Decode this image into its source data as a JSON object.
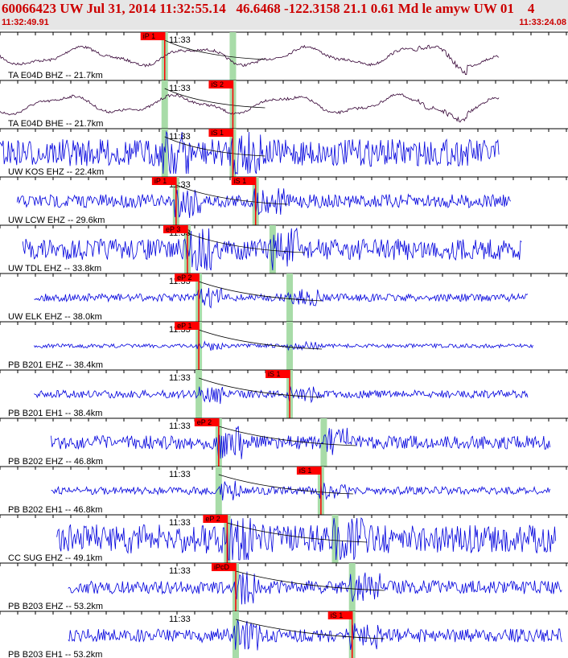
{
  "header": {
    "title": "60066423 UW Jul 31, 2014 11:32:55.14   46.6468 -122.3158 21.1 0.61 Md le amyw UW 01    4",
    "time_start": "11:32:49.91",
    "time_end": "11:33:24.08"
  },
  "minute_label": "11:33",
  "colors": {
    "trace_blue": "#0000dd",
    "trace_dark": "#330033",
    "pick_red": "#ff0000",
    "window_green": "#a8dca8",
    "travel_curve": "#000000",
    "header_bg": "#e6e6e6"
  },
  "traces": [
    {
      "label": "TA E04D BHZ -- 21.7km",
      "color": "dark",
      "start": 0.0,
      "end": 0.88,
      "p_pick": "iP 1",
      "p_time": 0.29,
      "s_pick": "",
      "s_time": 0.41,
      "amp": 0.45,
      "style": "smooth"
    },
    {
      "label": "TA E04D BHE -- 21.7km",
      "color": "dark",
      "start": 0.0,
      "end": 0.88,
      "p_pick": "",
      "p_time": 0.29,
      "s_pick": "iS 2",
      "s_time": 0.41,
      "amp": 0.45,
      "style": "smooth"
    },
    {
      "label": "UW KOS EHZ -- 22.4km",
      "color": "blue",
      "start": 0.0,
      "end": 0.88,
      "p_pick": "",
      "p_time": 0.29,
      "s_pick": "iS 1",
      "s_time": 0.41,
      "amp": 0.7,
      "style": "noise"
    },
    {
      "label": "UW LCW EHZ -- 29.6km",
      "color": "blue",
      "start": 0.03,
      "end": 0.9,
      "p_pick": "iP 1",
      "p_time": 0.31,
      "s_pick": "iS 1",
      "s_time": 0.45,
      "amp": 0.35,
      "style": "noise"
    },
    {
      "label": "UW TDL EHZ -- 33.8km",
      "color": "blue",
      "start": 0.04,
      "end": 0.92,
      "p_pick": "eP 3",
      "p_time": 0.33,
      "s_pick": "",
      "s_time": 0.48,
      "amp": 0.55,
      "style": "noise"
    },
    {
      "label": "UW ELK EHZ -- 38.0km",
      "color": "blue",
      "start": 0.06,
      "end": 0.93,
      "p_pick": "eP 2",
      "p_time": 0.35,
      "s_pick": "",
      "s_time": 0.51,
      "amp": 0.2,
      "style": "noise"
    },
    {
      "label": "PB B201 EHZ -- 38.4km",
      "color": "blue",
      "start": 0.06,
      "end": 0.94,
      "p_pick": "eP 1",
      "p_time": 0.35,
      "s_pick": "",
      "s_time": 0.51,
      "amp": 0.1,
      "style": "noise"
    },
    {
      "label": "PB B201 EH1 -- 38.4km",
      "color": "blue",
      "start": 0.06,
      "end": 0.93,
      "p_pick": "",
      "p_time": 0.35,
      "s_pick": "iS 1",
      "s_time": 0.51,
      "amp": 0.2,
      "style": "noise"
    },
    {
      "label": "PB B202 EHZ -- 46.8km",
      "color": "blue",
      "start": 0.09,
      "end": 0.97,
      "p_pick": "eP 2",
      "p_time": 0.385,
      "s_pick": "",
      "s_time": 0.57,
      "amp": 0.35,
      "style": "noise"
    },
    {
      "label": "PB B202 EH1 -- 46.8km",
      "color": "blue",
      "start": 0.09,
      "end": 0.97,
      "p_pick": "",
      "p_time": 0.385,
      "s_pick": "iS 1",
      "s_time": 0.565,
      "amp": 0.2,
      "style": "noise"
    },
    {
      "label": "CC SUG EHZ -- 49.1km",
      "color": "blue",
      "start": 0.1,
      "end": 0.98,
      "p_pick": "eP 2",
      "p_time": 0.4,
      "s_pick": "",
      "s_time": 0.59,
      "amp": 0.75,
      "style": "noise"
    },
    {
      "label": "PB B203 EHZ -- 53.2km",
      "color": "blue",
      "start": 0.12,
      "end": 0.99,
      "p_pick": "iPcD",
      "p_time": 0.415,
      "s_pick": "",
      "s_time": 0.62,
      "amp": 0.35,
      "style": "noise"
    },
    {
      "label": "PB B203 EH1 -- 53.2km",
      "color": "blue",
      "start": 0.12,
      "end": 0.99,
      "p_pick": "",
      "p_time": 0.415,
      "s_pick": "iS 1",
      "s_time": 0.62,
      "amp": 0.35,
      "style": "noise"
    }
  ]
}
